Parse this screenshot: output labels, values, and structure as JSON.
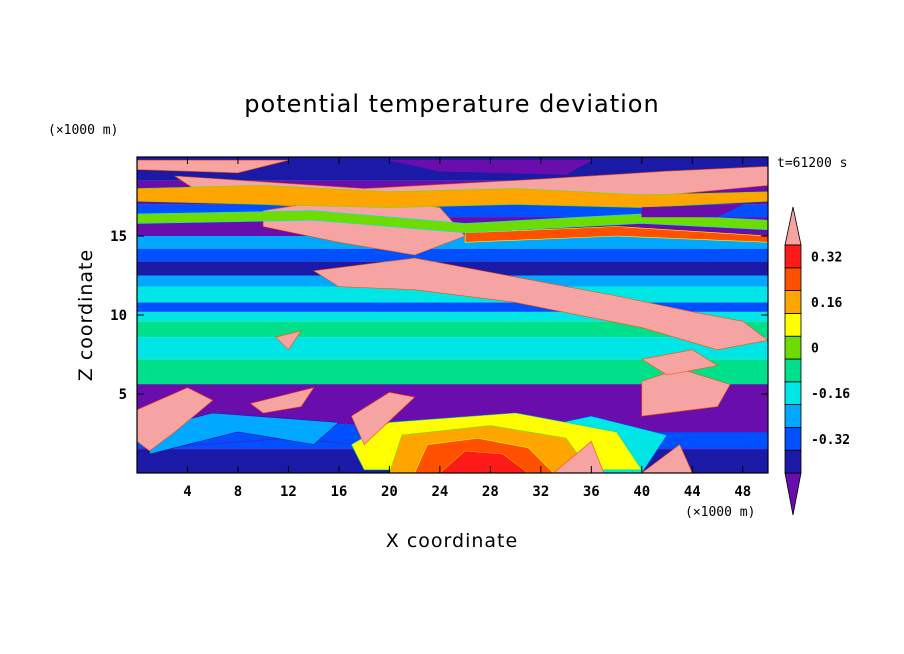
{
  "chart_data": {
    "type": "heatmap",
    "title": "potential temperature deviation",
    "xlabel": "X coordinate",
    "ylabel": "Z coordinate",
    "x_unit": "(×1000 m)",
    "y_unit": "(×1000 m)",
    "time_label": "t=61200 s",
    "xlim": [
      0,
      50
    ],
    "ylim": [
      0,
      20
    ],
    "x_ticks": [
      "4",
      "8",
      "12",
      "16",
      "20",
      "24",
      "28",
      "32",
      "36",
      "40",
      "44",
      "48"
    ],
    "y_ticks": [
      "5",
      "10",
      "15"
    ],
    "colorbar": {
      "levels": [
        -0.4,
        -0.32,
        -0.24,
        -0.16,
        -0.08,
        0,
        0.08,
        0.16,
        0.24,
        0.32,
        0.4
      ],
      "labeled_values": [
        "0.32",
        "0.16",
        "0",
        "-0.16",
        "-0.32"
      ],
      "colors": [
        "#6a0dad",
        "#1a1aa6",
        "#0050ff",
        "#00a8ff",
        "#00e6e6",
        "#00e08a",
        "#6ddc00",
        "#ffff00",
        "#ffa500",
        "#ff5000",
        "#ff1a1a",
        "#f5a3a3"
      ],
      "extends": "both"
    }
  }
}
